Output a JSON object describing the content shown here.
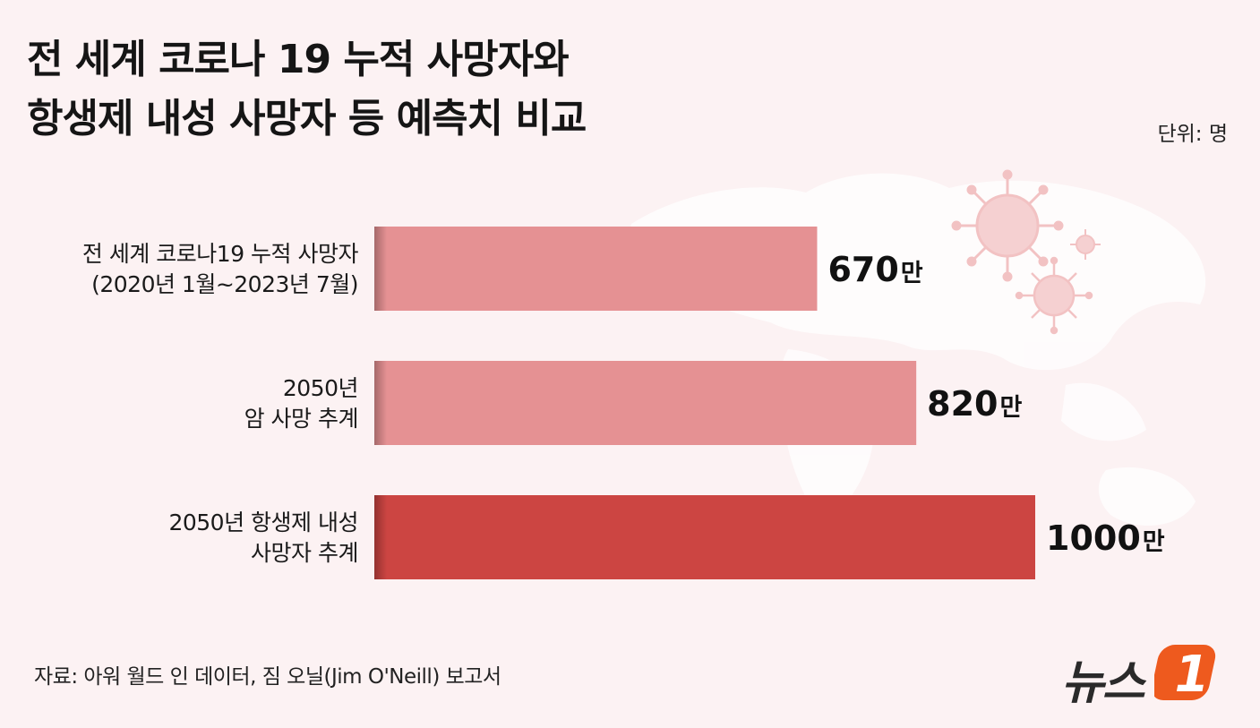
{
  "header": {
    "title_line1": "전 세계 코로나 19 누적 사망자와",
    "title_line2": "항생제 내성 사망자 등 예측치 비교",
    "unit": "단위: 명"
  },
  "footer": {
    "source": "자료: 아워 월드 인 데이터, 짐 오닐(Jim O'Neill) 보고서",
    "logo_text": "뉴스",
    "logo_mark": "1"
  },
  "colors": {
    "background": "#fcf2f3",
    "bar_light": "#e59193",
    "bar_dark": "#cc4542",
    "logo_orange": "#ee5a1e"
  },
  "chart_data": {
    "type": "bar",
    "orientation": "horizontal",
    "categories": [
      [
        "전 세계 코로나19 누적 사망자",
        "(2020년 1월~2023년 7월)"
      ],
      [
        "2050년",
        "암 사망 추계"
      ],
      [
        "2050년 항생제 내성",
        "사망자 추계"
      ]
    ],
    "values": [
      670,
      820,
      1000
    ],
    "value_labels": [
      "670",
      "820",
      "1000"
    ],
    "value_suffix": "만",
    "bar_colors": [
      "#e59193",
      "#e59193",
      "#cc4542"
    ],
    "xlim": [
      0,
      1000
    ],
    "grid": false,
    "legend": "none"
  }
}
